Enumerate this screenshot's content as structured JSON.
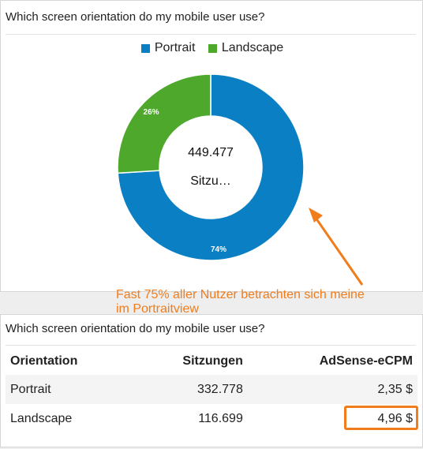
{
  "colors": {
    "portrait": "#0a7fc4",
    "landscape": "#4ea82b",
    "annotation": "#f07c1b"
  },
  "top_card": {
    "title": "Which screen orientation do my mobile user use?"
  },
  "chart_data": {
    "type": "pie",
    "donut": true,
    "title": "Which screen orientation do my mobile user use?",
    "legend": [
      "Portrait",
      "Landscape"
    ],
    "legend_position": "top",
    "slices": [
      {
        "name": "Portrait",
        "value": 74,
        "label": "74%"
      },
      {
        "name": "Landscape",
        "value": 26,
        "label": "26%"
      }
    ],
    "center_value": "449.477",
    "center_label": "Sitzu…"
  },
  "annotation": {
    "text": "Fast 75% aller Nutzer betrachten sich meine im Portraitview"
  },
  "bottom_card": {
    "title": "Which screen orientation do my mobile user use?",
    "columns": [
      "Orientation",
      "Sitzungen",
      "AdSense-eCPM"
    ],
    "rows": [
      {
        "orientation": "Portrait",
        "sessions": "332.778",
        "ecpm": "2,35 $"
      },
      {
        "orientation": "Landscape",
        "sessions": "116.699",
        "ecpm": "4,96 $"
      }
    ]
  }
}
